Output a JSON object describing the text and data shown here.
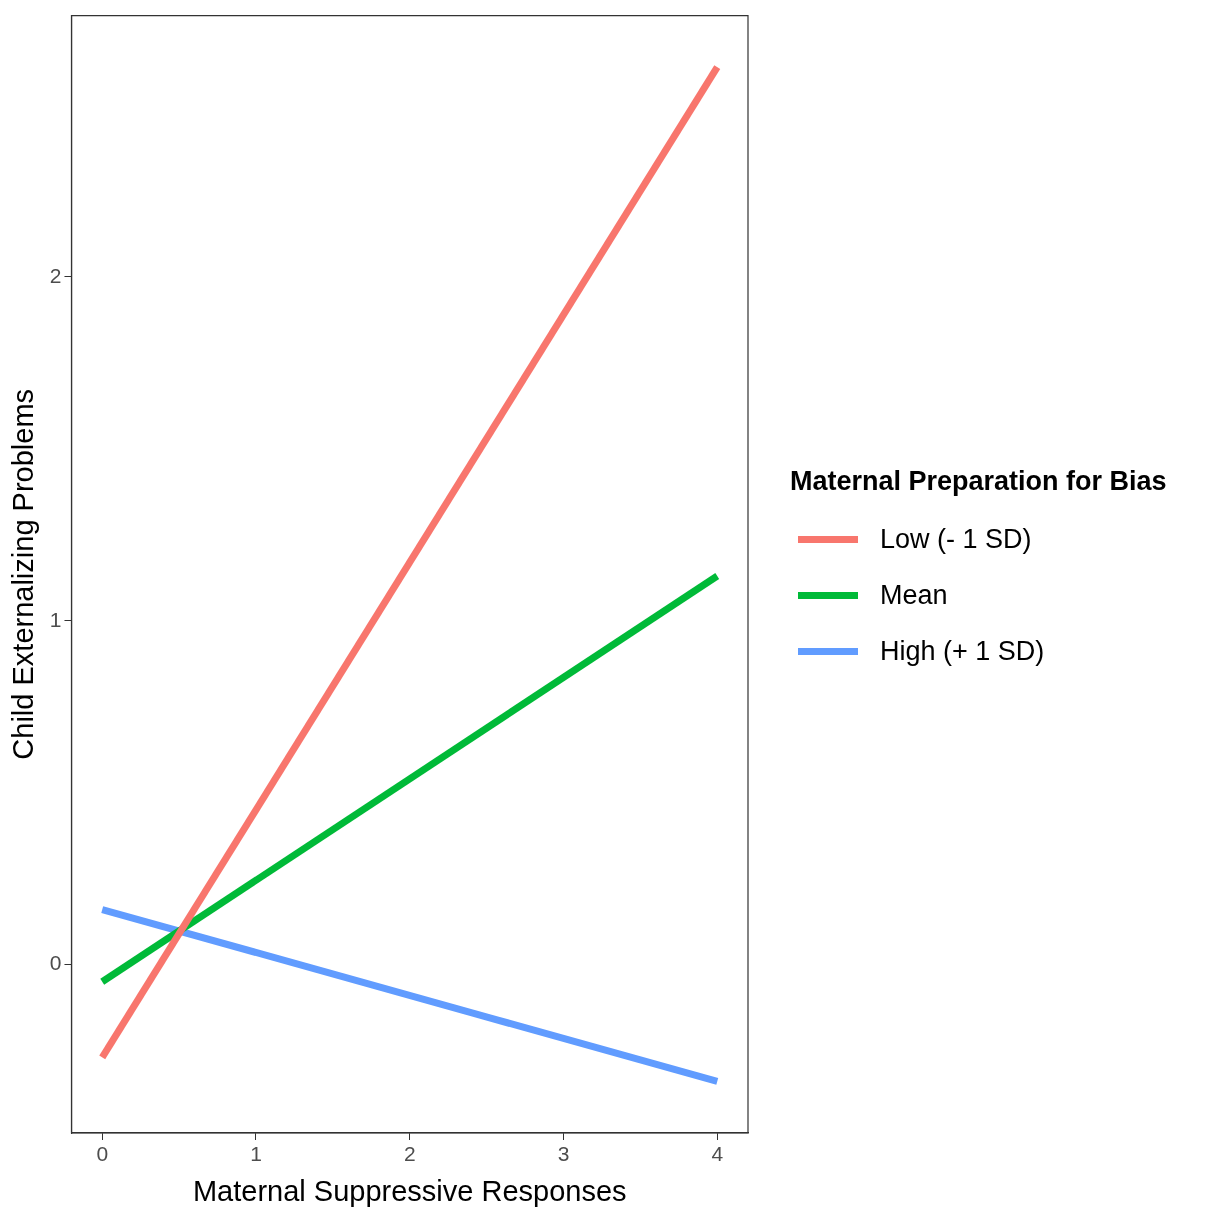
{
  "chart_data": {
    "type": "line",
    "xlabel": "Maternal Suppressive Responses",
    "ylabel": "Child Externalizing Problems",
    "legend_title": "Maternal Preparation for Bias",
    "x": [
      0,
      4
    ],
    "series": [
      {
        "name": "Low (- 1 SD)",
        "color": "#f8766d",
        "values": [
          -0.27,
          2.61
        ]
      },
      {
        "name": "Mean",
        "color": "#00ba38",
        "values": [
          -0.05,
          1.13
        ]
      },
      {
        "name": "High (+ 1 SD)",
        "color": "#619cff",
        "values": [
          0.16,
          -0.34
        ]
      }
    ],
    "xlim": [
      -0.2,
      4.2
    ],
    "xticks": [
      0,
      1,
      2,
      3,
      4
    ],
    "ylim": [
      -0.49,
      2.76
    ],
    "yticks": [
      0,
      1,
      2
    ],
    "grid": false,
    "legend": "right",
    "marker": "none",
    "line_style": "solid"
  }
}
